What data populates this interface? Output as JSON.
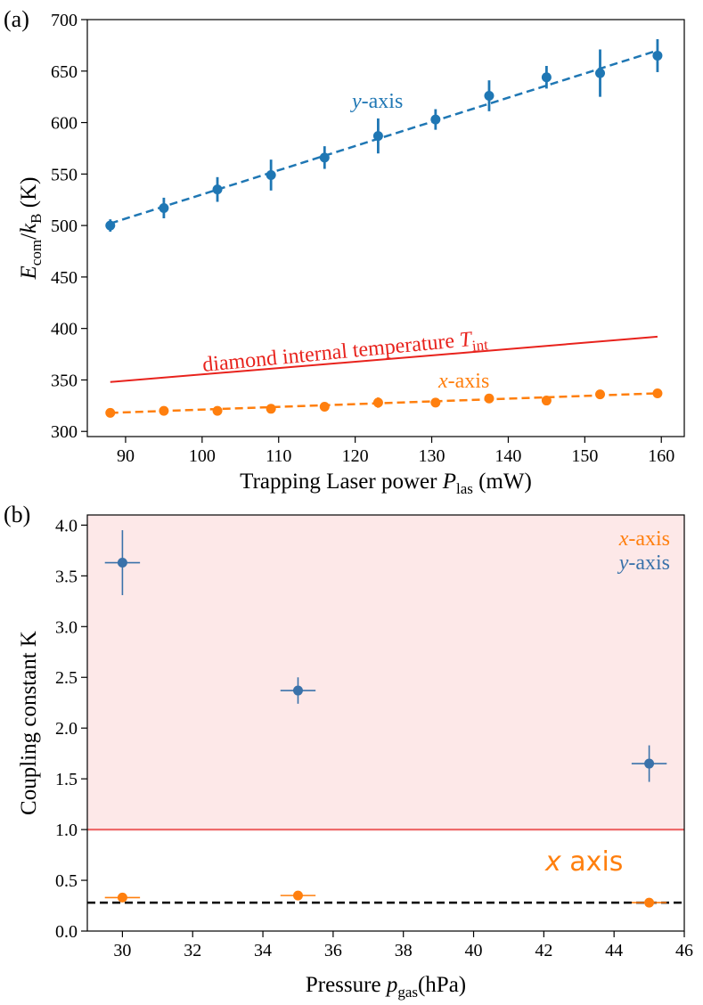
{
  "chart_data": [
    {
      "panel": "(a)",
      "type": "scatter",
      "xlabel": {
        "main": "Trapping Laser power ",
        "var": "P",
        "sub": "las",
        "unit": " (mW)"
      },
      "ylabel": {
        "var": "E",
        "sub": "com",
        "slash": "/",
        "var2": "k",
        "sub2": "B",
        "unit": " (K)"
      },
      "xlim": [
        85,
        163
      ],
      "ylim": [
        295,
        700
      ],
      "xticks": [
        90,
        100,
        110,
        120,
        130,
        140,
        150,
        160
      ],
      "yticks": [
        300,
        350,
        400,
        450,
        500,
        550,
        600,
        650,
        700
      ],
      "series": [
        {
          "name": "y-axis",
          "color": "#1f77b4",
          "x": [
            88,
            95,
            102,
            109,
            116,
            123,
            130.5,
            137.5,
            145,
            152,
            159.5
          ],
          "y": [
            500,
            517,
            535,
            549,
            566,
            587,
            603,
            626,
            644,
            648,
            665
          ],
          "yerr": [
            6,
            10,
            12,
            15,
            11,
            17,
            10,
            15,
            11,
            23,
            16
          ],
          "fit": [
            [
              88,
              502
            ],
            [
              159.5,
              670
            ]
          ]
        },
        {
          "name": "x-axis",
          "color": "#ff7f0e",
          "x": [
            88,
            95,
            102,
            109,
            116,
            123,
            130.5,
            137.5,
            145,
            152,
            159.5
          ],
          "y": [
            318,
            320,
            320,
            322,
            324,
            328,
            328,
            332,
            330,
            336,
            337
          ],
          "yerr": [
            3,
            4,
            4,
            3,
            3,
            5,
            3,
            4,
            3,
            4,
            4
          ],
          "fit": [
            [
              88,
              318
            ],
            [
              159.5,
              337
            ]
          ]
        },
        {
          "name": "diamond internal temperature",
          "color": "#e8221c",
          "line": [
            [
              88,
              348
            ],
            [
              159.5,
              392
            ]
          ]
        }
      ],
      "annotations": {
        "y_axis_label": {
          "var": "y",
          "rest": "-axis"
        },
        "x_axis_label": {
          "var": "x",
          "rest": "-axis"
        },
        "tint_label": {
          "main": "diamond internal temperature ",
          "var": "T",
          "sub": "int"
        }
      }
    },
    {
      "panel": "(b)",
      "type": "scatter",
      "xlabel": {
        "main": "Pressure ",
        "var": "p",
        "sub": "gas",
        "unit": "(hPa)"
      },
      "ylabel": "Coupling constant K",
      "xlim": [
        29,
        46
      ],
      "ylim": [
        0,
        4.1
      ],
      "xticks": [
        30,
        32,
        34,
        36,
        38,
        40,
        42,
        44,
        46
      ],
      "yticks": [
        0.0,
        0.5,
        1.0,
        1.5,
        2.0,
        2.5,
        3.0,
        3.5,
        4.0
      ],
      "ytick_labels": [
        "0.0",
        "0.5",
        "1.0",
        "1.5",
        "2.0",
        "2.5",
        "3.0",
        "3.5",
        "4.0"
      ],
      "shaded_region": {
        "from": 1.0,
        "to": 4.1,
        "color": "#fde8e8"
      },
      "reference_line": {
        "y": 1.0,
        "color": "#ee6a6a"
      },
      "dashed_line": {
        "y": 0.28,
        "color": "#000000"
      },
      "series": [
        {
          "name": "y-axis",
          "color": "#3a72aa",
          "x": [
            30,
            35,
            45
          ],
          "y": [
            3.63,
            2.37,
            1.65
          ],
          "xerr": [
            0.5,
            0.5,
            0.5
          ],
          "yerr": [
            0.32,
            0.13,
            0.18
          ]
        },
        {
          "name": "x-axis",
          "color": "#ff7f0e",
          "x": [
            30,
            35,
            45
          ],
          "y": [
            0.33,
            0.35,
            0.28
          ],
          "xerr": [
            0.5,
            0.5,
            0.5
          ],
          "yerr": [
            0.02,
            0.02,
            0.02
          ]
        }
      ],
      "legend": [
        {
          "var": "x",
          "rest": "-axis",
          "color": "#ff7f0e"
        },
        {
          "var": "y",
          "rest": "-axis",
          "color": "#3a72aa"
        }
      ],
      "legend_position": "top-right",
      "annotation": "x axis"
    }
  ]
}
